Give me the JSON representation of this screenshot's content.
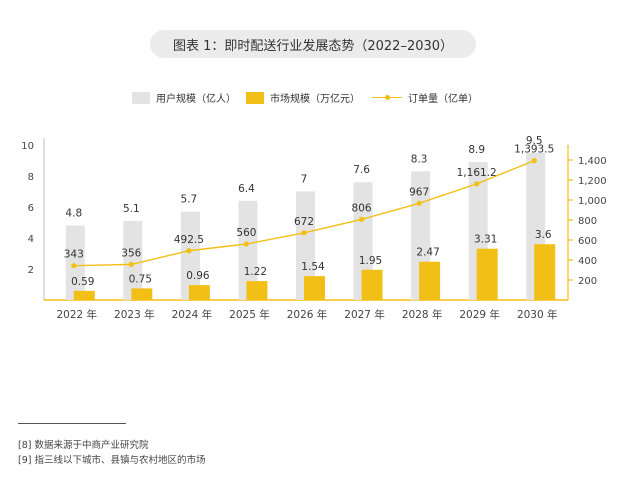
{
  "title": "图表 1：即时配送行业发展态势（2022–2030）",
  "legend": {
    "users": "用户规模（亿人）",
    "market": "市场规模（万亿元）",
    "orders": "订单量（亿单）"
  },
  "footnotes": [
    "[8] 数据来源于中商产业研究院",
    "[9] 指三线以下城市、县镇与农村地区的市场"
  ],
  "colors": {
    "users": "#e3e3e3",
    "market": "#f2bf16",
    "orders": "#f2bf16",
    "axis": "#f2bf16"
  },
  "chart_data": {
    "type": "bar",
    "categories": [
      "2022 年",
      "2023 年",
      "2024 年",
      "2025 年",
      "2026 年",
      "2027 年",
      "2028 年",
      "2029 年",
      "2030 年"
    ],
    "series": [
      {
        "name": "用户规模（亿人）",
        "type": "bar",
        "axis": "left",
        "values": [
          4.8,
          5.1,
          5.7,
          6.4,
          7,
          7.6,
          8.3,
          8.9,
          9.5
        ],
        "labels": [
          "4.8",
          "5.1",
          "5.7",
          "6.4",
          "7",
          "7.6",
          "8.3",
          "8.9",
          "9.5"
        ]
      },
      {
        "name": "市场规模（万亿元）",
        "type": "bar",
        "axis": "left",
        "values": [
          0.59,
          0.75,
          0.96,
          1.22,
          1.54,
          1.95,
          2.47,
          3.31,
          3.6
        ],
        "labels": [
          "0.59",
          "0.75",
          "0.96",
          "1.22",
          "1.54",
          "1.95",
          "2.47",
          "3.31",
          "3.6"
        ]
      },
      {
        "name": "订单量（亿单）",
        "type": "line",
        "axis": "right",
        "values": [
          343,
          356,
          492.5,
          560,
          672,
          806,
          967,
          1161.2,
          1393.5
        ],
        "labels": [
          "343",
          "356",
          "492.5",
          "560",
          "672",
          "806",
          "967",
          "1,161.2",
          "1,393.5"
        ]
      }
    ],
    "y_left": {
      "ylim": [
        0,
        10
      ],
      "ticks": [
        2,
        4,
        6,
        8,
        10
      ]
    },
    "y_right": {
      "ylim": [
        0,
        1400
      ],
      "ticks": [
        200,
        400,
        600,
        800,
        1000,
        1200,
        1400
      ],
      "tick_labels": [
        "200",
        "400",
        "600",
        "800",
        "1,000",
        "1,200",
        "1,400"
      ]
    },
    "grid": false,
    "legend_position": "top"
  }
}
